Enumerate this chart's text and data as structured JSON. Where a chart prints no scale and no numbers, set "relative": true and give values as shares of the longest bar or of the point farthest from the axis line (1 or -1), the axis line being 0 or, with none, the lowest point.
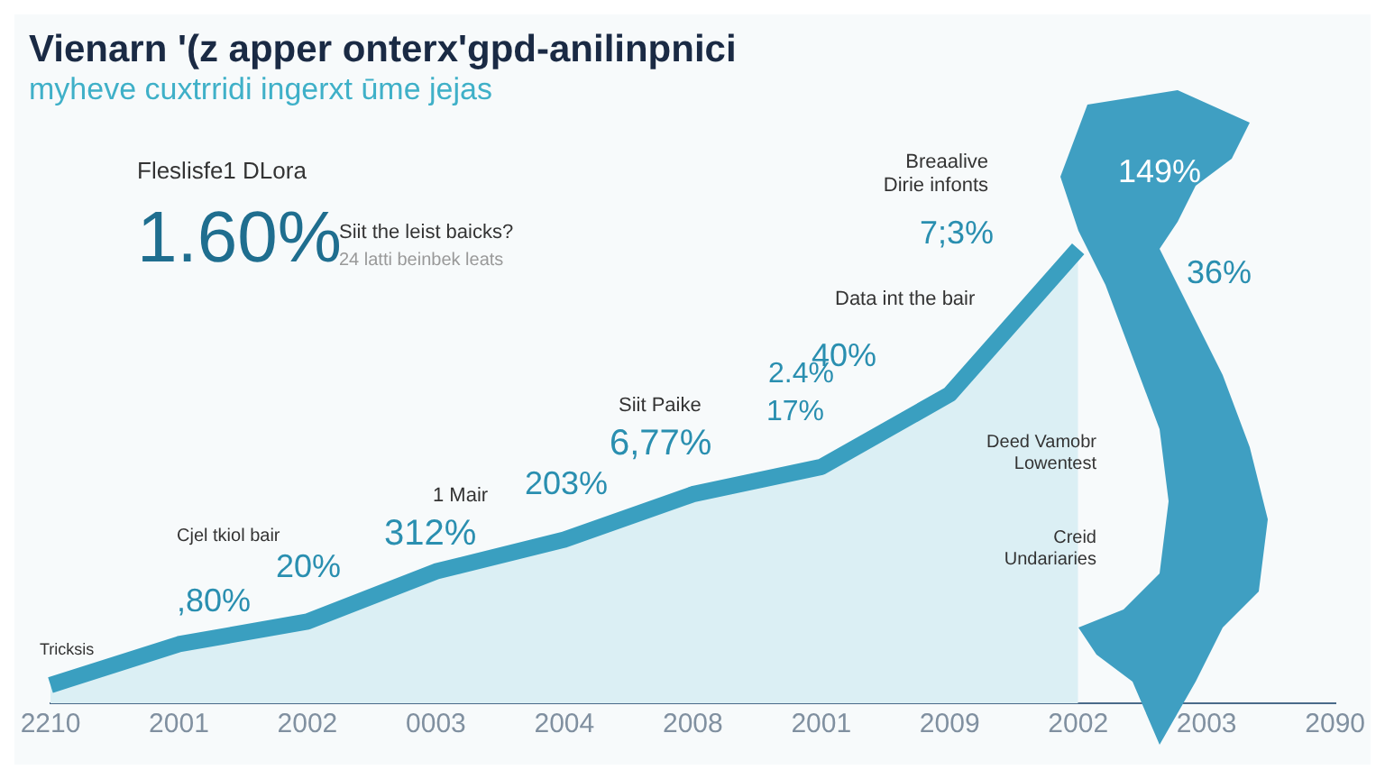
{
  "chart_data": {
    "type": "area",
    "title": "Vienarn '(z apper onterx'gpd-anilinpnici",
    "subtitle": "myheve cuxtrridi ingerxt ūme jejas",
    "categories": [
      "2210",
      "2001",
      "2002",
      "0003",
      "2004",
      "2008",
      "2001",
      "2009",
      "2002",
      "2003",
      "2090"
    ],
    "series": [
      {
        "color": "#3a9fc0",
        "values": [
          0.04,
          0.13,
          0.18,
          0.29,
          0.36,
          0.46,
          0.52,
          0.68,
          1,
          null,
          null
        ]
      }
    ],
    "relative": true,
    "grid": false,
    "legend": false,
    "annotations": [
      "Fleslisfe1 DLora",
      "1.60%",
      "Siit the leist baicks?",
      "24 latti beinbek leats",
      "Siit Paike",
      "6,77%",
      "203%",
      "1 Mair",
      "312%",
      "Cjel tkiol bair",
      "20%",
      ",80%",
      "Tricksis",
      "Data int the bair",
      "40%",
      "2.4%",
      "17%",
      "Breaalive Dirie infonts",
      "7;3%",
      "149%",
      "36%",
      "Deed Vamobr Lowentest",
      "Creid Undariaries"
    ]
  }
}
